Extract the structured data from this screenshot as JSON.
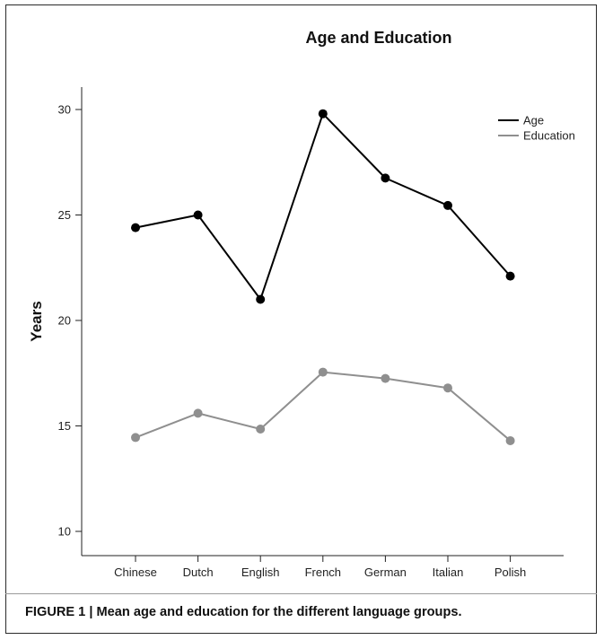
{
  "caption": "FIGURE 1 | Mean age and education for the different language groups.",
  "chart_data": {
    "type": "line",
    "title": "Age and Education",
    "xlabel": "",
    "ylabel": "Years",
    "categories": [
      "Chinese",
      "Dutch",
      "English",
      "French",
      "German",
      "Italian",
      "Polish"
    ],
    "ylim": [
      9,
      31
    ],
    "yticks": [
      10,
      15,
      20,
      25,
      30
    ],
    "grid": false,
    "legend_position": "top-right",
    "series": [
      {
        "name": "Age",
        "color": "#000000",
        "values": [
          24.4,
          25.0,
          21.0,
          29.8,
          26.75,
          25.45,
          22.1
        ]
      },
      {
        "name": "Education",
        "color": "#8f8f8f",
        "values": [
          14.45,
          15.6,
          14.85,
          17.55,
          17.25,
          16.8,
          14.3
        ]
      }
    ]
  }
}
